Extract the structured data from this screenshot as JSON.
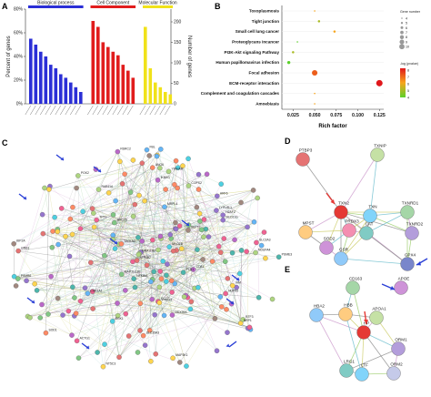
{
  "panels": {
    "a": {
      "label": "A"
    },
    "b": {
      "label": "B"
    },
    "c": {
      "label": "C"
    },
    "d": {
      "label": "D"
    },
    "e": {
      "label": "E"
    }
  },
  "chart_data": [
    {
      "type": "bar",
      "panel": "A",
      "ylabel": "Percent of genes",
      "y2label": "Number of genes",
      "yticks": [
        "80%",
        "60%",
        "40%",
        "20%",
        "0%"
      ],
      "y2ticks": [
        "200",
        "150",
        "100",
        "50",
        "0"
      ],
      "ylim": [
        0,
        80
      ],
      "series": [
        {
          "name": "Biological process",
          "color": "#2b2fd6",
          "values": [
            55,
            50,
            44,
            40,
            33,
            30,
            25,
            22,
            18,
            14,
            10
          ]
        },
        {
          "name": "Cell Component",
          "color": "#e11d1d",
          "values": [
            70,
            65,
            52,
            48,
            44,
            41,
            33,
            28,
            22
          ]
        },
        {
          "name": "Molecular Function",
          "color": "#f0e21a",
          "values": [
            65,
            30,
            18,
            14,
            10,
            8
          ]
        }
      ]
    },
    {
      "type": "scatter",
      "panel": "B",
      "xlabel": "Rich factor",
      "xlim": [
        0.012,
        0.13
      ],
      "xticks": [
        "0.025",
        "0.050",
        "0.075",
        "0.100",
        "0.125"
      ],
      "categories": [
        "Toxoplasmosis",
        "Tight junction",
        "Small cell lung cancer",
        "Proteoglycans incancer",
        "PI3K-Akt signaling Pathway",
        "Human papillomavirus infection",
        "Focal adhesion",
        "ECM-receptor interaction",
        "Complement and coagulation cascades",
        "Amoebiasis"
      ],
      "x": [
        0.05,
        0.055,
        0.073,
        0.03,
        0.025,
        0.02,
        0.05,
        0.125,
        0.05,
        0.05
      ],
      "gene_number": [
        4,
        5,
        5,
        4,
        5,
        6,
        9,
        10,
        4,
        4
      ],
      "neg_log_p": [
        6,
        5,
        6,
        4,
        5,
        4,
        7,
        8,
        6,
        6
      ],
      "legend_size_title": "Gene number",
      "legend_size_values": [
        "4",
        "5",
        "6",
        "7",
        "8",
        "9",
        "10"
      ],
      "legend_color_title": "-log (pvalue)",
      "legend_color_values": [
        "8",
        "7",
        "6",
        "5",
        "4"
      ]
    }
  ],
  "network_c": {
    "labels": [
      "LYPLAL1",
      "SOD1",
      "CCT7",
      "NRP1",
      "SLC35A3",
      "ANO6",
      "PLD1",
      "TPT1",
      "MAP1LC3B",
      "RSRC2",
      "SPC25",
      "PRDX1",
      "FAM118B",
      "PSMB6",
      "NFKBIA",
      "PGK2",
      "ATP6B2",
      "NDUFA4",
      "MRPL4",
      "SLC2A3",
      "PSME3",
      "NT5C3",
      "SGK1",
      "IKBKG",
      "ACTG1",
      "MYO1D",
      "RAB11A",
      "FBL",
      "COPS2",
      "TAGLN2",
      "MAP3K1",
      "DDX39A",
      "NUP93",
      "BTF3",
      "SEC61G",
      "CAPZA1",
      "SEPT7",
      "YWHAB",
      "VIM",
      "CD81",
      "GNB1",
      "H2AFZ",
      "KIF2A",
      "ARF6"
    ]
  },
  "network_d": {
    "nodes": [
      "PTBP3",
      "TXNIP",
      "TXN2",
      "TXN",
      "TXNRD1",
      "TXNRD2",
      "MPST",
      "PRDX3",
      "CAT",
      "SOD2",
      "GSR",
      "GPX4"
    ]
  },
  "network_e": {
    "nodes": [
      "HBA2",
      "CD163",
      "APOE",
      "HBB",
      "APOA1",
      "HP",
      "ORM1",
      "LRG1",
      "LTF",
      "ORM2"
    ]
  }
}
